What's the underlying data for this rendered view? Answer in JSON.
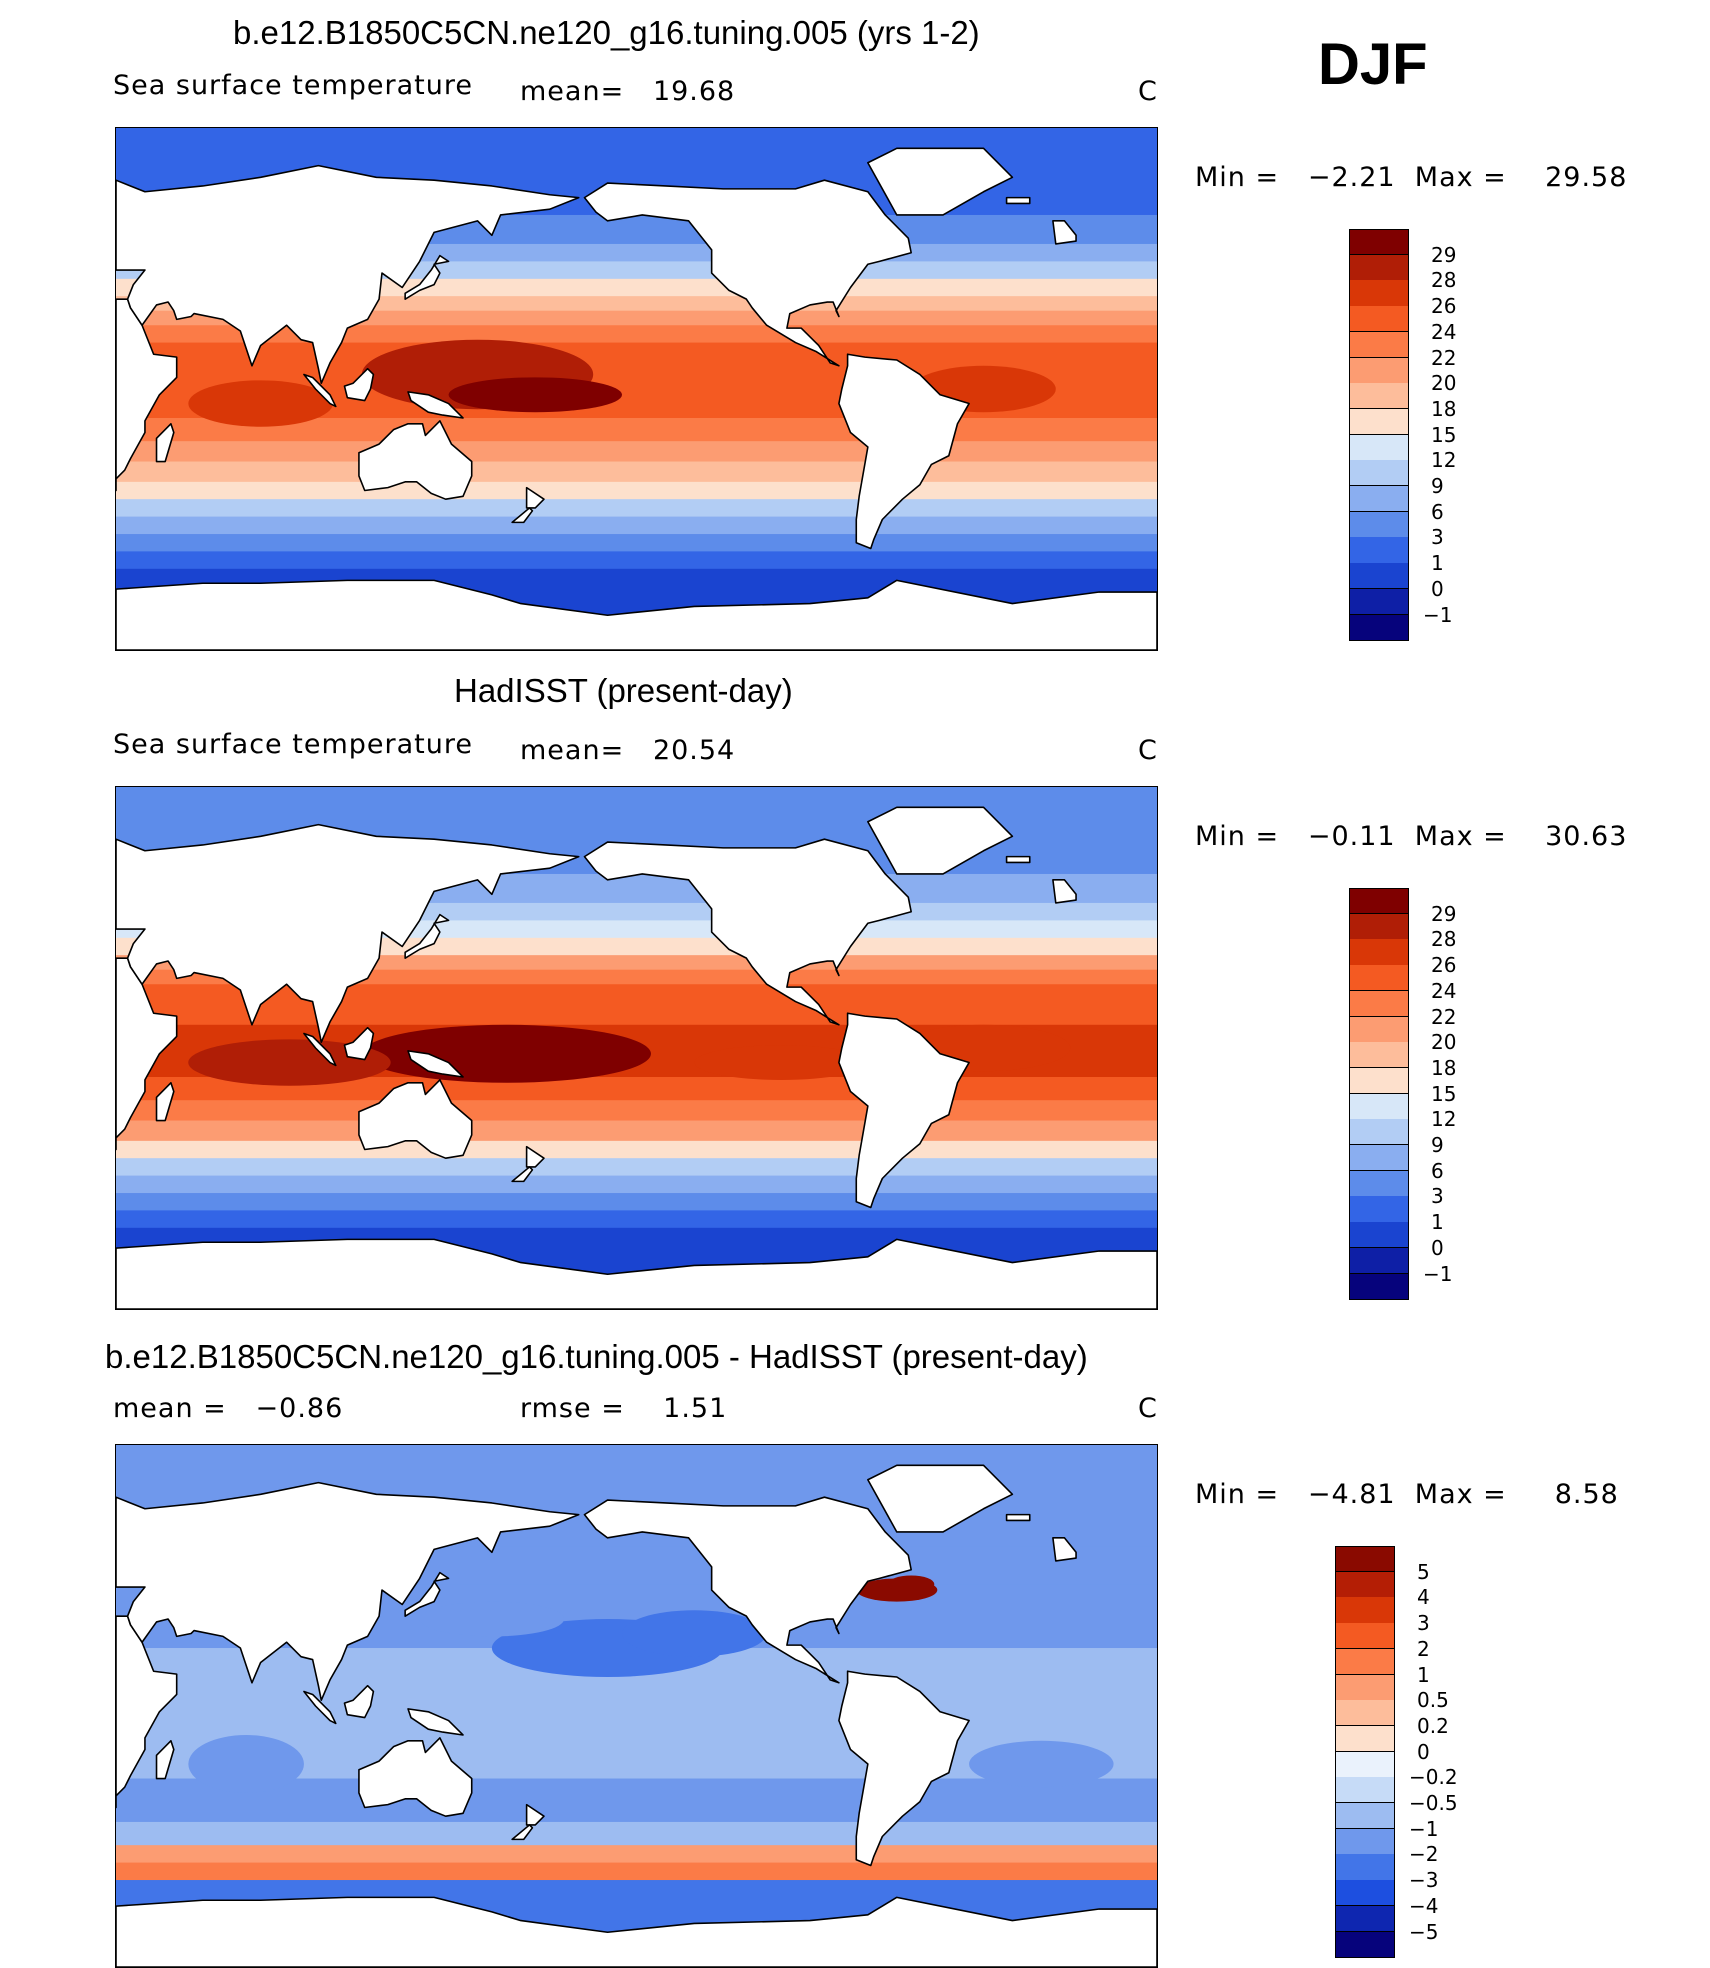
{
  "season": "DJF",
  "panels": [
    {
      "id": "model",
      "title": "b.e12.B1850C5CN.ne120_g16.tuning.005 (yrs 1-2)",
      "left_label": "Sea surface temperature",
      "mid_label": "mean=   19.68",
      "units": "C",
      "minmax": "Min =   −2.21  Max =    29.58",
      "levels": [
        "29",
        "28",
        "26",
        "24",
        "22",
        "20",
        "18",
        "15",
        "12",
        "9",
        "6",
        "3",
        "1",
        "0",
        "−1"
      ],
      "colors": [
        "#7f0000",
        "#b01e06",
        "#d93707",
        "#f45a22",
        "#fb7b47",
        "#fc9c72",
        "#fdbd9b",
        "#fde0cc",
        "#d7e7f8",
        "#b2cdf4",
        "#8aaef0",
        "#5d8cea",
        "#3365e6",
        "#1a44d0",
        "#0e1fa6",
        "#06037c"
      ]
    },
    {
      "id": "obs",
      "title": "HadISST (present-day)",
      "left_label": "Sea surface temperature",
      "mid_label": "mean=   20.54",
      "units": "C",
      "minmax": "Min =   −0.11  Max =    30.63",
      "levels": [
        "29",
        "28",
        "26",
        "24",
        "22",
        "20",
        "18",
        "15",
        "12",
        "9",
        "6",
        "3",
        "1",
        "0",
        "−1"
      ],
      "colors": [
        "#7f0000",
        "#b01e06",
        "#d93707",
        "#f45a22",
        "#fb7b47",
        "#fc9c72",
        "#fdbd9b",
        "#fde0cc",
        "#d7e7f8",
        "#b2cdf4",
        "#8aaef0",
        "#5d8cea",
        "#3365e6",
        "#1a44d0",
        "#0e1fa6",
        "#06037c"
      ]
    },
    {
      "id": "diff",
      "title": "b.e12.B1850C5CN.ne120_g16.tuning.005 - HadISST (present-day)",
      "left_label": "mean =   −0.86",
      "mid_label": "rmse =    1.51",
      "units": "C",
      "minmax": "Min =   −4.81  Max =     8.58",
      "levels": [
        "5",
        "4",
        "3",
        "2",
        "1",
        "0.5",
        "0.2",
        "0",
        "−0.2",
        "−0.5",
        "−1",
        "−2",
        "−3",
        "−4",
        "−5"
      ],
      "colors": [
        "#8a0a00",
        "#b41e05",
        "#d93707",
        "#f45a22",
        "#fb7b47",
        "#fc9c72",
        "#fdbd9b",
        "#fde0cc",
        "#eaf2fc",
        "#c6dbf7",
        "#9dbcf1",
        "#6f98ec",
        "#4275e8",
        "#1d4fe0",
        "#0e26b0",
        "#06037c"
      ]
    }
  ],
  "land_color": "#ffffff",
  "coast_color": "#000000"
}
